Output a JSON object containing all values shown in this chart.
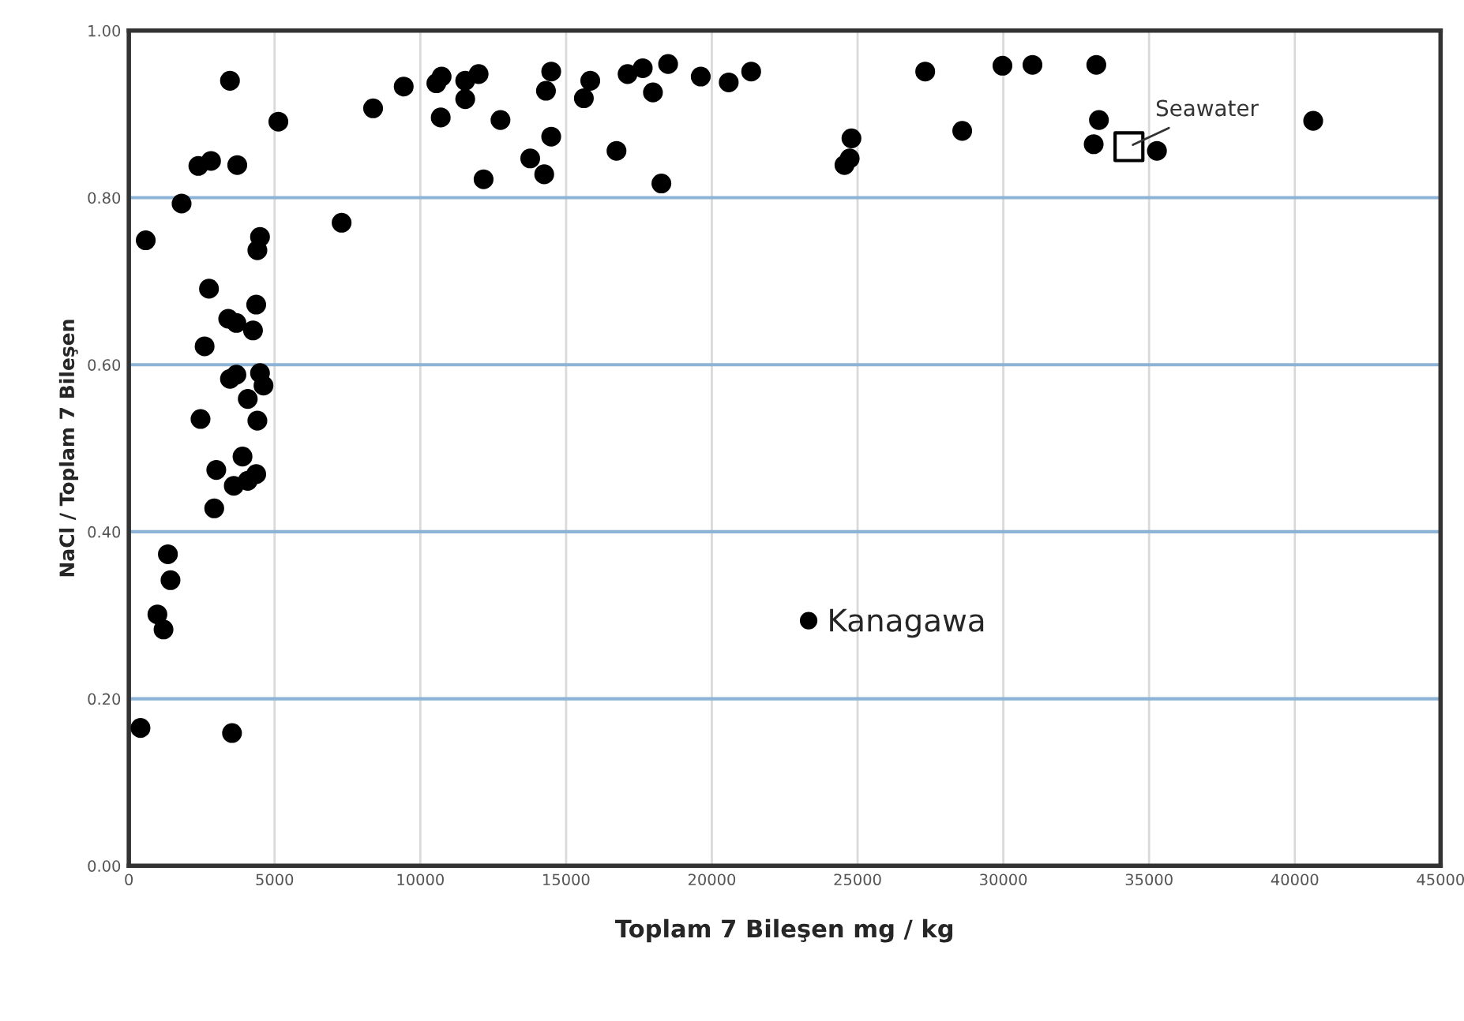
{
  "chart_data": {
    "type": "scatter",
    "xlabel": "Toplam 7 Bileşen mg / kg",
    "ylabel": "NaCl / Toplam 7 Bileşen",
    "xlim": [
      0,
      45000
    ],
    "xticks": [
      0,
      5000,
      10000,
      15000,
      20000,
      25000,
      30000,
      35000,
      40000,
      45000
    ],
    "ylim": [
      0,
      1
    ],
    "yticks": [
      {
        "value": 0,
        "label": "0.00"
      },
      {
        "value": 0.2,
        "label": "0.20"
      },
      {
        "value": 0.4,
        "label": "0.40"
      },
      {
        "value": 0.6,
        "label": "0.60"
      },
      {
        "value": 0.8,
        "label": "0.80"
      },
      {
        "value": 1,
        "label": "1.00"
      }
    ],
    "grid": true,
    "legend": "bottom",
    "series": [
      {
        "name": "Kanagawa",
        "color": "#000000",
        "marker": "circle",
        "x": [
          3470,
          5130,
          8380,
          9430,
          2385,
          2820,
          3720,
          1810,
          580,
          7300,
          4500,
          4410,
          2750,
          4370,
          3410,
          3690,
          4260,
          2600,
          3470,
          3690,
          4500,
          4620,
          4080,
          4410,
          2460,
          3900,
          3000,
          3600,
          4080,
          4370,
          2930,
          1340,
          1430,
          980,
          1190,
          400,
          3540,
          10550,
          10730,
          10700,
          11540,
          12000,
          11540,
          12750,
          12170,
          13770,
          14250,
          14490,
          14490,
          14310,
          15830,
          15610,
          16730,
          17110,
          17630,
          17980,
          18270,
          18500,
          19620,
          20580,
          21350,
          24790,
          24730,
          24550,
          27320,
          28590,
          29970,
          31000,
          33190,
          33280,
          33100,
          35270,
          40630
        ],
        "values": [
          0.94,
          0.891,
          0.907,
          0.933,
          0.838,
          0.844,
          0.839,
          0.793,
          0.749,
          0.77,
          0.753,
          0.737,
          0.691,
          0.672,
          0.655,
          0.65,
          0.641,
          0.622,
          0.583,
          0.588,
          0.59,
          0.575,
          0.559,
          0.533,
          0.535,
          0.49,
          0.474,
          0.455,
          0.461,
          0.469,
          0.428,
          0.373,
          0.342,
          0.301,
          0.283,
          0.165,
          0.159,
          0.937,
          0.945,
          0.896,
          0.94,
          0.948,
          0.918,
          0.893,
          0.822,
          0.847,
          0.828,
          0.873,
          0.951,
          0.928,
          0.94,
          0.919,
          0.856,
          0.948,
          0.955,
          0.926,
          0.817,
          0.96,
          0.945,
          0.938,
          0.951,
          0.871,
          0.847,
          0.839,
          0.951,
          0.88,
          0.958,
          0.959,
          0.959,
          0.893,
          0.864,
          0.856,
          0.892
        ]
      },
      {
        "name": "Seawater",
        "color": "#000000",
        "marker": "square",
        "x": [
          34310
        ],
        "values": [
          0.861
        ]
      }
    ]
  }
}
